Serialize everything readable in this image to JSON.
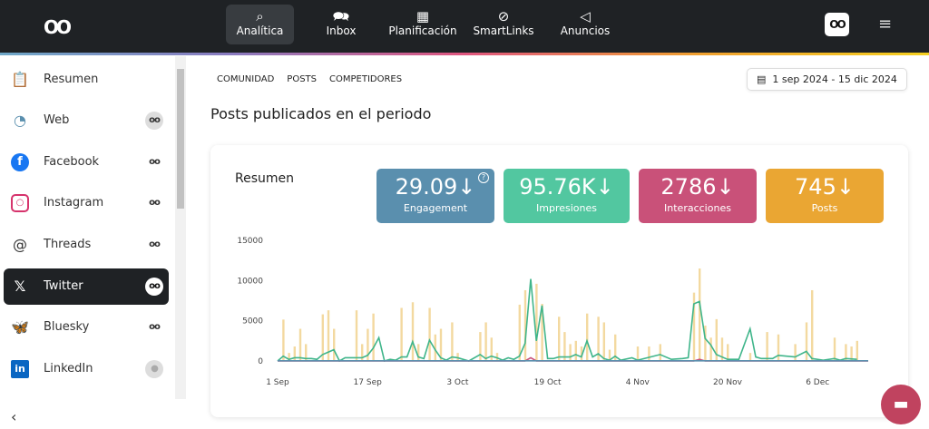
{
  "nav": {
    "items": [
      {
        "label": "Analítica",
        "icon": "analytics-search-icon",
        "active": true
      },
      {
        "label": "Inbox",
        "icon": "chat-bubbles-icon"
      },
      {
        "label": "Planificación",
        "icon": "calendar-icon"
      },
      {
        "label": "SmartLinks",
        "icon": "link-icon"
      },
      {
        "label": "Anuncios",
        "icon": "megaphone-icon"
      }
    ]
  },
  "sidebar": {
    "items": [
      {
        "label": "Resumen",
        "icon": "clipboard-icon"
      },
      {
        "label": "Web",
        "icon": "rss-icon"
      },
      {
        "label": "Facebook",
        "icon": "facebook-icon"
      },
      {
        "label": "Instagram",
        "icon": "instagram-icon"
      },
      {
        "label": "Threads",
        "icon": "threads-icon"
      },
      {
        "label": "Twitter",
        "icon": "x-icon",
        "active": true
      },
      {
        "label": "Bluesky",
        "icon": "bluesky-icon"
      },
      {
        "label": "LinkedIn",
        "icon": "linkedin-icon"
      }
    ]
  },
  "tabs": [
    "COMUNIDAD",
    "POSTS",
    "COMPETIDORES"
  ],
  "date_range": "1 sep 2024 - 15 dic 2024",
  "page_title": "Posts publicados en el periodo",
  "summary": {
    "title": "Resumen",
    "kpis": [
      {
        "value": "29.09↓",
        "label": "Engagement",
        "color": "#5a8fae"
      },
      {
        "value": "95.76K↓",
        "label": "Impresiones",
        "color": "#52c7a0"
      },
      {
        "value": "2786↓",
        "label": "Interacciones",
        "color": "#c95179"
      },
      {
        "value": "745↓",
        "label": "Posts",
        "color": "#eaa633"
      }
    ],
    "help": "?"
  },
  "chart_data": {
    "type": "bar+line",
    "ylim": [
      0,
      15000
    ],
    "yticks": [
      "0",
      "5000",
      "10000",
      "15000"
    ],
    "xticks": [
      [
        "2024-09-01",
        "1 Sep"
      ],
      [
        "2024-09-17",
        "17 Sep"
      ],
      [
        "2024-10-03",
        "3 Oct"
      ],
      [
        "2024-10-19",
        "19 Oct"
      ],
      [
        "2024-11-04",
        "4 Nov"
      ],
      [
        "2024-11-20",
        "20 Nov"
      ],
      [
        "2024-12-06",
        "6 Dec"
      ]
    ],
    "grid": false,
    "bars": {
      "color": "#f3d9a0",
      "points": [
        [
          "2024-09-02",
          5150
        ],
        [
          "2024-09-03",
          1000
        ],
        [
          "2024-09-04",
          1800
        ],
        [
          "2024-09-05",
          4000
        ],
        [
          "2024-09-06",
          2100
        ],
        [
          "2024-09-09",
          5800
        ],
        [
          "2024-09-10",
          6300
        ],
        [
          "2024-09-11",
          4000
        ],
        [
          "2024-09-15",
          6300
        ],
        [
          "2024-09-16",
          2100
        ],
        [
          "2024-09-17",
          4000
        ],
        [
          "2024-09-18",
          5900
        ],
        [
          "2024-09-23",
          6600
        ],
        [
          "2024-09-25",
          7300
        ],
        [
          "2024-09-26",
          2100
        ],
        [
          "2024-09-28",
          6600
        ],
        [
          "2024-09-29",
          3300
        ],
        [
          "2024-09-30",
          4000
        ],
        [
          "2024-10-02",
          4800
        ],
        [
          "2024-10-03",
          1000
        ],
        [
          "2024-10-07",
          3600
        ],
        [
          "2024-10-08",
          4800
        ],
        [
          "2024-10-09",
          2900
        ],
        [
          "2024-10-10",
          1000
        ],
        [
          "2024-10-14",
          7000
        ],
        [
          "2024-10-15",
          8800
        ],
        [
          "2024-10-17",
          9600
        ],
        [
          "2024-10-18",
          7100
        ],
        [
          "2024-10-21",
          5500
        ],
        [
          "2024-10-22",
          3600
        ],
        [
          "2024-10-23",
          2100
        ],
        [
          "2024-10-24",
          2500
        ],
        [
          "2024-10-25",
          1800
        ],
        [
          "2024-10-26",
          5900
        ],
        [
          "2024-10-28",
          5500
        ],
        [
          "2024-10-29",
          4800
        ],
        [
          "2024-10-30",
          1400
        ],
        [
          "2024-10-31",
          3300
        ],
        [
          "2024-11-04",
          1800
        ],
        [
          "2024-11-06",
          1800
        ],
        [
          "2024-11-08",
          2100
        ],
        [
          "2024-11-14",
          8500
        ],
        [
          "2024-11-15",
          11500
        ],
        [
          "2024-11-16",
          4400
        ],
        [
          "2024-11-17",
          2900
        ],
        [
          "2024-11-18",
          5200
        ],
        [
          "2024-11-19",
          2900
        ],
        [
          "2024-11-20",
          2100
        ],
        [
          "2024-11-24",
          1000
        ],
        [
          "2024-11-27",
          3600
        ],
        [
          "2024-11-29",
          3300
        ],
        [
          "2024-12-02",
          2100
        ],
        [
          "2024-12-04",
          4800
        ],
        [
          "2024-12-05",
          8800
        ],
        [
          "2024-12-09",
          2900
        ],
        [
          "2024-12-11",
          2100
        ],
        [
          "2024-12-12",
          1800
        ],
        [
          "2024-12-13",
          2500
        ]
      ]
    },
    "series": [
      {
        "color": "#3fb58a",
        "points": [
          [
            "2024-09-01",
            0
          ],
          [
            "2024-09-02",
            600
          ],
          [
            "2024-09-03",
            200
          ],
          [
            "2024-09-04",
            400
          ],
          [
            "2024-09-05",
            400
          ],
          [
            "2024-09-06",
            300
          ],
          [
            "2024-09-07",
            300
          ],
          [
            "2024-09-08",
            200
          ],
          [
            "2024-09-09",
            800
          ],
          [
            "2024-09-11",
            1400
          ],
          [
            "2024-09-12",
            0
          ],
          [
            "2024-09-13",
            400
          ],
          [
            "2024-09-15",
            400
          ],
          [
            "2024-09-16",
            400
          ],
          [
            "2024-09-17",
            700
          ],
          [
            "2024-09-18",
            1600
          ],
          [
            "2024-09-19",
            2900
          ],
          [
            "2024-09-20",
            0
          ],
          [
            "2024-09-21",
            200
          ],
          [
            "2024-09-22",
            100
          ],
          [
            "2024-09-23",
            500
          ],
          [
            "2024-09-24",
            500
          ],
          [
            "2024-09-25",
            2400
          ],
          [
            "2024-09-26",
            500
          ],
          [
            "2024-09-27",
            300
          ],
          [
            "2024-09-28",
            2600
          ],
          [
            "2024-09-29",
            1400
          ],
          [
            "2024-09-30",
            400
          ],
          [
            "2024-10-01",
            100
          ],
          [
            "2024-10-02",
            500
          ],
          [
            "2024-10-03",
            400
          ],
          [
            "2024-10-05",
            0
          ],
          [
            "2024-10-07",
            800
          ],
          [
            "2024-10-08",
            300
          ],
          [
            "2024-10-09",
            600
          ],
          [
            "2024-10-10",
            400
          ],
          [
            "2024-10-11",
            100
          ],
          [
            "2024-10-12",
            400
          ],
          [
            "2024-10-13",
            200
          ],
          [
            "2024-10-14",
            600
          ],
          [
            "2024-10-15",
            2200
          ],
          [
            "2024-10-16",
            10200
          ],
          [
            "2024-10-17",
            2500
          ],
          [
            "2024-10-18",
            6900
          ],
          [
            "2024-10-19",
            300
          ],
          [
            "2024-10-20",
            300
          ],
          [
            "2024-10-21",
            500
          ],
          [
            "2024-10-23",
            500
          ],
          [
            "2024-10-24",
            800
          ],
          [
            "2024-10-25",
            500
          ],
          [
            "2024-10-26",
            2500
          ],
          [
            "2024-10-27",
            500
          ],
          [
            "2024-10-28",
            900
          ],
          [
            "2024-10-29",
            300
          ],
          [
            "2024-10-30",
            100
          ],
          [
            "2024-10-31",
            600
          ],
          [
            "2024-11-01",
            100
          ],
          [
            "2024-11-03",
            400
          ],
          [
            "2024-11-04",
            100
          ],
          [
            "2024-11-08",
            800
          ],
          [
            "2024-11-09",
            500
          ],
          [
            "2024-11-10",
            200
          ],
          [
            "2024-11-12",
            300
          ],
          [
            "2024-11-13",
            400
          ],
          [
            "2024-11-14",
            7100
          ],
          [
            "2024-11-15",
            7400
          ],
          [
            "2024-11-16",
            2800
          ],
          [
            "2024-11-17",
            2000
          ],
          [
            "2024-11-18",
            800
          ],
          [
            "2024-11-19",
            500
          ],
          [
            "2024-11-20",
            200
          ],
          [
            "2024-11-22",
            200
          ],
          [
            "2024-11-24",
            4000
          ],
          [
            "2024-11-25",
            500
          ],
          [
            "2024-11-26",
            300
          ],
          [
            "2024-11-28",
            300
          ],
          [
            "2024-11-29",
            700
          ],
          [
            "2024-12-02",
            500
          ],
          [
            "2024-12-04",
            1200
          ],
          [
            "2024-12-05",
            300
          ],
          [
            "2024-12-07",
            100
          ],
          [
            "2024-12-09",
            300
          ],
          [
            "2024-12-10",
            100
          ],
          [
            "2024-12-11",
            300
          ],
          [
            "2024-12-13",
            200
          ]
        ]
      },
      {
        "color": "#c95179",
        "points": [
          [
            "2024-09-01",
            0
          ],
          [
            "2024-10-15",
            0
          ],
          [
            "2024-10-16",
            400
          ],
          [
            "2024-10-17",
            0
          ],
          [
            "2024-11-14",
            0
          ],
          [
            "2024-11-15",
            200
          ],
          [
            "2024-11-16",
            0
          ],
          [
            "2024-12-15",
            0
          ]
        ]
      },
      {
        "color": "#5a8fae",
        "points": [
          [
            "2024-09-01",
            20
          ],
          [
            "2024-12-15",
            20
          ]
        ]
      }
    ]
  }
}
